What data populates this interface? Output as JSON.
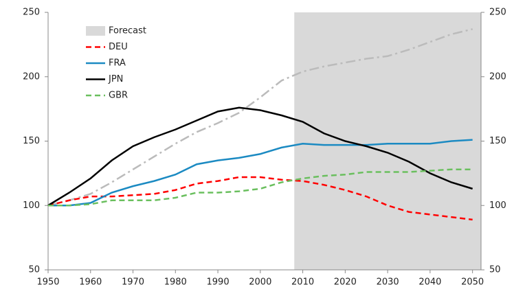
{
  "chart_data": {
    "type": "line",
    "x": [
      1950,
      1955,
      1960,
      1965,
      1970,
      1975,
      1980,
      1985,
      1990,
      1995,
      2000,
      2005,
      2010,
      2015,
      2020,
      2025,
      2030,
      2035,
      2040,
      2045,
      2050
    ],
    "series": [
      {
        "color": "#bbbbbb",
        "style": "dashdot",
        "values": [
          100,
          104,
          109,
          118,
          128,
          138,
          148,
          157,
          164,
          172,
          184,
          197,
          204,
          208,
          211,
          214,
          216,
          221,
          227,
          233,
          237
        ]
      },
      {
        "name": "DEU",
        "color": "#ff0000",
        "style": "dashed",
        "values": [
          100,
          104,
          107,
          107,
          108,
          109,
          112,
          117,
          119,
          122,
          122,
          120,
          119,
          116,
          112,
          107,
          100,
          95,
          93,
          91,
          89
        ]
      },
      {
        "name": "FRA",
        "color": "#1b8ac2",
        "style": "solid",
        "values": [
          100,
          100,
          102,
          110,
          115,
          119,
          124,
          132,
          135,
          137,
          140,
          145,
          148,
          147,
          147,
          147,
          148,
          148,
          148,
          150,
          151
        ]
      },
      {
        "name": "JPN",
        "color": "#000000",
        "style": "solid",
        "values": [
          100,
          110,
          121,
          135,
          146,
          153,
          159,
          166,
          173,
          176,
          174,
          170,
          165,
          156,
          150,
          146,
          141,
          134,
          125,
          118,
          113
        ]
      },
      {
        "name": "GBR",
        "color": "#6abf5e",
        "style": "dashed",
        "values": [
          100,
          100,
          101,
          104,
          104,
          104,
          106,
          110,
          110,
          111,
          113,
          118,
          121,
          123,
          124,
          126,
          126,
          126,
          127,
          128,
          128
        ]
      }
    ],
    "forecast": {
      "label": "Forecast",
      "start": 2008,
      "color": "#d9d9d9"
    },
    "xlim": [
      1950,
      2052
    ],
    "xticks": [
      1950,
      1960,
      1970,
      1980,
      1990,
      2000,
      2010,
      2020,
      2030,
      2040,
      2050
    ],
    "ylim": [
      50,
      250
    ],
    "yticks": [
      50,
      100,
      150,
      200,
      250
    ],
    "y2lim": [
      50,
      250
    ],
    "y2ticks": [
      50,
      100,
      150,
      200,
      250
    ]
  }
}
